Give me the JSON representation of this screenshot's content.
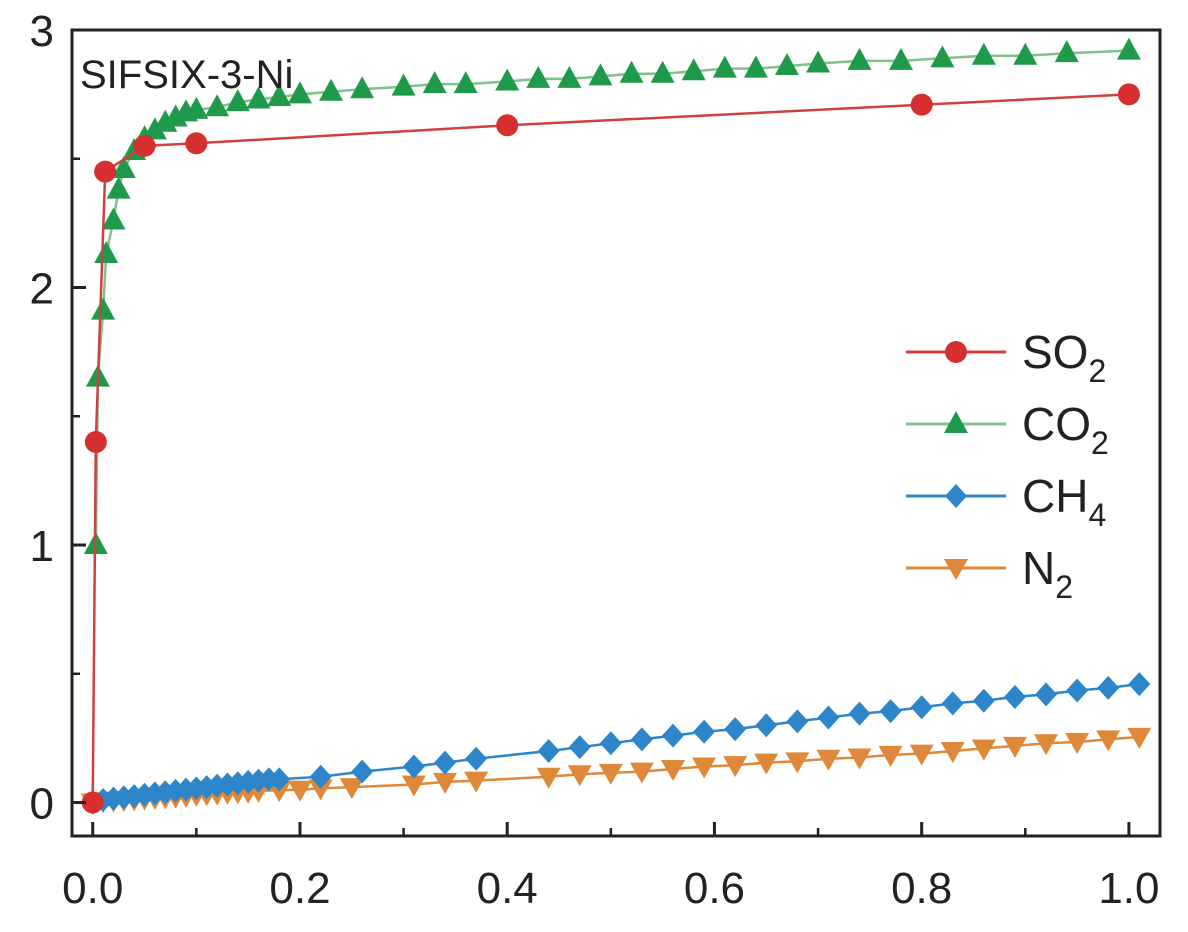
{
  "chart_data": {
    "type": "line",
    "title": "SIFSIX-3-Ni",
    "xlabel": "",
    "ylabel": "",
    "xlim": [
      -0.02,
      1.03
    ],
    "ylim": [
      -0.13,
      3.0
    ],
    "x_ticks": [
      "0.0",
      "0.2",
      "0.4",
      "0.6",
      "0.8",
      "1.0"
    ],
    "y_ticks": [
      "0",
      "1",
      "2",
      "3"
    ],
    "legend_position": "right-middle",
    "series": [
      {
        "name": "SO2",
        "label_main": "SO",
        "label_sub": "2",
        "color": "#d62f2f",
        "line_color": "#d04040",
        "marker": "circle",
        "points": [
          [
            0.0,
            0.0
          ],
          [
            0.003,
            1.4
          ],
          [
            0.012,
            2.45
          ],
          [
            0.05,
            2.55
          ],
          [
            0.1,
            2.56
          ],
          [
            0.4,
            2.63
          ],
          [
            0.8,
            2.71
          ],
          [
            1.0,
            2.75
          ]
        ]
      },
      {
        "name": "CO2",
        "label_main": "CO",
        "label_sub": "2",
        "color": "#1f9a4b",
        "line_color": "#7fc28c",
        "marker": "triangle-up",
        "points": [
          [
            0.003,
            1.0
          ],
          [
            0.005,
            1.65
          ],
          [
            0.01,
            1.91
          ],
          [
            0.013,
            2.13
          ],
          [
            0.02,
            2.26
          ],
          [
            0.025,
            2.38
          ],
          [
            0.03,
            2.46
          ],
          [
            0.04,
            2.53
          ],
          [
            0.05,
            2.58
          ],
          [
            0.06,
            2.61
          ],
          [
            0.07,
            2.64
          ],
          [
            0.08,
            2.66
          ],
          [
            0.09,
            2.68
          ],
          [
            0.1,
            2.69
          ],
          [
            0.12,
            2.7
          ],
          [
            0.14,
            2.72
          ],
          [
            0.16,
            2.73
          ],
          [
            0.18,
            2.74
          ],
          [
            0.2,
            2.75
          ],
          [
            0.23,
            2.76
          ],
          [
            0.26,
            2.77
          ],
          [
            0.3,
            2.78
          ],
          [
            0.33,
            2.79
          ],
          [
            0.36,
            2.79
          ],
          [
            0.4,
            2.8
          ],
          [
            0.43,
            2.81
          ],
          [
            0.46,
            2.81
          ],
          [
            0.49,
            2.82
          ],
          [
            0.52,
            2.83
          ],
          [
            0.55,
            2.83
          ],
          [
            0.58,
            2.84
          ],
          [
            0.61,
            2.85
          ],
          [
            0.64,
            2.85
          ],
          [
            0.67,
            2.86
          ],
          [
            0.7,
            2.87
          ],
          [
            0.74,
            2.88
          ],
          [
            0.78,
            2.88
          ],
          [
            0.82,
            2.89
          ],
          [
            0.86,
            2.9
          ],
          [
            0.9,
            2.9
          ],
          [
            0.94,
            2.91
          ],
          [
            1.0,
            2.92
          ]
        ]
      },
      {
        "name": "CH4",
        "label_main": "CH",
        "label_sub": "4",
        "color": "#2d86c9",
        "line_color": "#2d86c9",
        "marker": "diamond",
        "points": [
          [
            0.0,
            0.0
          ],
          [
            0.01,
            0.01
          ],
          [
            0.02,
            0.015
          ],
          [
            0.03,
            0.02
          ],
          [
            0.04,
            0.025
          ],
          [
            0.05,
            0.03
          ],
          [
            0.06,
            0.035
          ],
          [
            0.07,
            0.04
          ],
          [
            0.08,
            0.045
          ],
          [
            0.09,
            0.05
          ],
          [
            0.1,
            0.055
          ],
          [
            0.11,
            0.06
          ],
          [
            0.12,
            0.065
          ],
          [
            0.13,
            0.07
          ],
          [
            0.14,
            0.075
          ],
          [
            0.15,
            0.08
          ],
          [
            0.16,
            0.085
          ],
          [
            0.17,
            0.09
          ],
          [
            0.18,
            0.09
          ],
          [
            0.22,
            0.1
          ],
          [
            0.26,
            0.12
          ],
          [
            0.31,
            0.14
          ],
          [
            0.34,
            0.155
          ],
          [
            0.37,
            0.17
          ],
          [
            0.44,
            0.2
          ],
          [
            0.47,
            0.215
          ],
          [
            0.5,
            0.23
          ],
          [
            0.53,
            0.245
          ],
          [
            0.56,
            0.26
          ],
          [
            0.59,
            0.275
          ],
          [
            0.62,
            0.285
          ],
          [
            0.65,
            0.3
          ],
          [
            0.68,
            0.315
          ],
          [
            0.71,
            0.33
          ],
          [
            0.74,
            0.345
          ],
          [
            0.77,
            0.355
          ],
          [
            0.8,
            0.37
          ],
          [
            0.83,
            0.385
          ],
          [
            0.86,
            0.395
          ],
          [
            0.89,
            0.41
          ],
          [
            0.92,
            0.42
          ],
          [
            0.95,
            0.435
          ],
          [
            0.98,
            0.445
          ],
          [
            1.01,
            0.46
          ]
        ]
      },
      {
        "name": "N2",
        "label_main": "N",
        "label_sub": "2",
        "color": "#e0883a",
        "line_color": "#e0883a",
        "marker": "triangle-down",
        "points": [
          [
            0.0,
            0.0
          ],
          [
            0.01,
            0.005
          ],
          [
            0.02,
            0.008
          ],
          [
            0.03,
            0.01
          ],
          [
            0.04,
            0.012
          ],
          [
            0.05,
            0.015
          ],
          [
            0.06,
            0.018
          ],
          [
            0.07,
            0.02
          ],
          [
            0.08,
            0.023
          ],
          [
            0.09,
            0.026
          ],
          [
            0.1,
            0.03
          ],
          [
            0.11,
            0.032
          ],
          [
            0.12,
            0.035
          ],
          [
            0.13,
            0.038
          ],
          [
            0.14,
            0.04
          ],
          [
            0.15,
            0.042
          ],
          [
            0.16,
            0.045
          ],
          [
            0.18,
            0.048
          ],
          [
            0.2,
            0.05
          ],
          [
            0.22,
            0.055
          ],
          [
            0.25,
            0.06
          ],
          [
            0.31,
            0.07
          ],
          [
            0.34,
            0.08
          ],
          [
            0.37,
            0.085
          ],
          [
            0.44,
            0.1
          ],
          [
            0.47,
            0.11
          ],
          [
            0.5,
            0.115
          ],
          [
            0.53,
            0.12
          ],
          [
            0.56,
            0.13
          ],
          [
            0.59,
            0.14
          ],
          [
            0.62,
            0.145
          ],
          [
            0.65,
            0.155
          ],
          [
            0.68,
            0.16
          ],
          [
            0.71,
            0.17
          ],
          [
            0.74,
            0.175
          ],
          [
            0.77,
            0.185
          ],
          [
            0.8,
            0.19
          ],
          [
            0.83,
            0.2
          ],
          [
            0.86,
            0.21
          ],
          [
            0.89,
            0.22
          ],
          [
            0.92,
            0.23
          ],
          [
            0.95,
            0.235
          ],
          [
            0.98,
            0.245
          ],
          [
            1.01,
            0.255
          ]
        ]
      }
    ]
  }
}
